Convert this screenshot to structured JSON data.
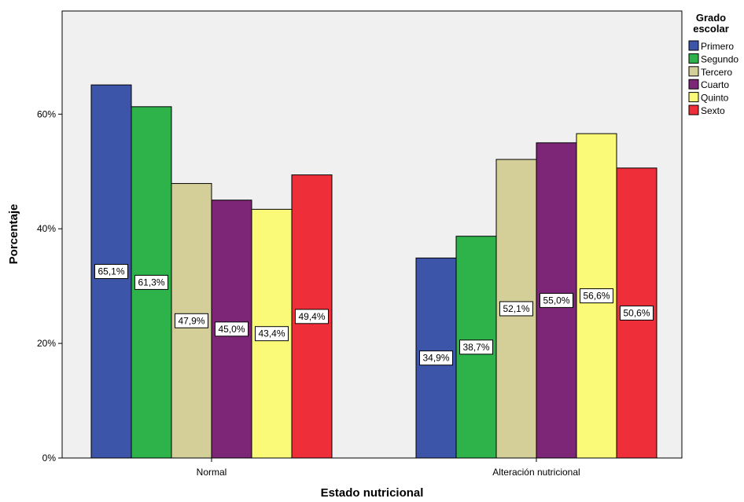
{
  "chart_data": {
    "type": "bar",
    "categories": [
      "Normal",
      "Alteración nutricional"
    ],
    "series": [
      {
        "name": "Primero",
        "values": [
          65.1,
          34.9
        ],
        "labels": [
          "65,1%",
          "34,9%"
        ],
        "color": "#3d55a8"
      },
      {
        "name": "Segundo",
        "values": [
          61.3,
          38.7
        ],
        "labels": [
          "61,3%",
          "38,7%"
        ],
        "color": "#2db34a"
      },
      {
        "name": "Tercero",
        "values": [
          47.9,
          52.1
        ],
        "labels": [
          "47,9%",
          "52,1%"
        ],
        "color": "#d4cf98"
      },
      {
        "name": "Cuarto",
        "values": [
          45.0,
          55.0
        ],
        "labels": [
          "45,0%",
          "55,0%"
        ],
        "color": "#7d2576"
      },
      {
        "name": "Quinto",
        "values": [
          43.4,
          56.6
        ],
        "labels": [
          "43,4%",
          "56,6%"
        ],
        "color": "#fafa78"
      },
      {
        "name": "Sexto",
        "values": [
          49.4,
          50.6
        ],
        "labels": [
          "49,4%",
          "50,6%"
        ],
        "color": "#ee2e38"
      }
    ],
    "xlabel": "Estado nutricional",
    "ylabel": "Porcentaje",
    "ylim": [
      0,
      78
    ],
    "yticks": [
      0,
      20,
      40,
      60
    ],
    "ytick_labels": [
      "0%",
      "20%",
      "40%",
      "60%"
    ],
    "legend": {
      "title_lines": [
        "Grado",
        "escolar"
      ],
      "position": "right"
    },
    "grid": false,
    "plot_background": "#f0f0f0"
  }
}
